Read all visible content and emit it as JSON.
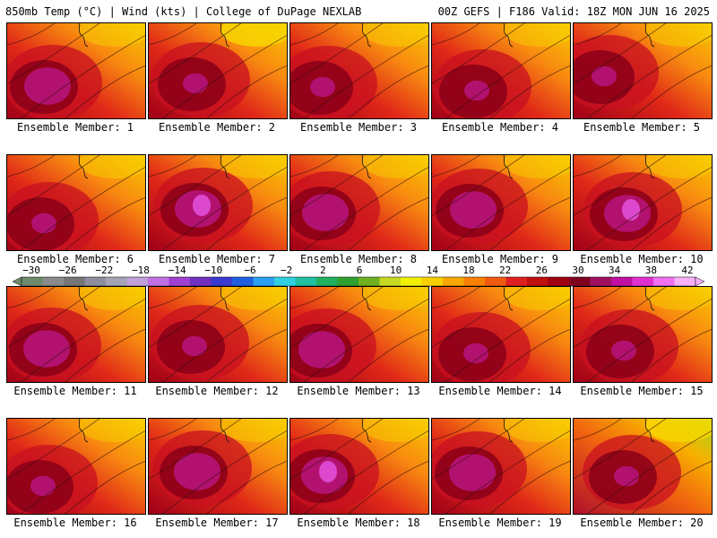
{
  "header": {
    "left": "850mb Temp (°C) | Wind (kts) | College of DuPage NEXLAB",
    "right": "00Z GEFS | F186 Valid: 18Z MON JUN 16 2025"
  },
  "panels": [
    {
      "label": "Ensemble Member: 1"
    },
    {
      "label": "Ensemble Member: 2"
    },
    {
      "label": "Ensemble Member: 3"
    },
    {
      "label": "Ensemble Member: 4"
    },
    {
      "label": "Ensemble Member: 5"
    },
    {
      "label": "Ensemble Member: 6"
    },
    {
      "label": "Ensemble Member: 7"
    },
    {
      "label": "Ensemble Member: 8"
    },
    {
      "label": "Ensemble Member: 9"
    },
    {
      "label": "Ensemble Member: 10"
    },
    {
      "label": "Ensemble Member: 11"
    },
    {
      "label": "Ensemble Member: 12"
    },
    {
      "label": "Ensemble Member: 13"
    },
    {
      "label": "Ensemble Member: 14"
    },
    {
      "label": "Ensemble Member: 15"
    },
    {
      "label": "Ensemble Member: 16"
    },
    {
      "label": "Ensemble Member: 17"
    },
    {
      "label": "Ensemble Member: 18"
    },
    {
      "label": "Ensemble Member: 19"
    },
    {
      "label": "Ensemble Member: 20"
    }
  ],
  "colorbar": {
    "labels": [
      "−30",
      "−26",
      "−22",
      "−18",
      "−14",
      "−10",
      "−6",
      "−2",
      "2",
      "6",
      "10",
      "14",
      "18",
      "22",
      "26",
      "30",
      "34",
      "38",
      "42"
    ],
    "colors": [
      "#6e8a6e",
      "#8a8a8a",
      "#767676",
      "#8e8e9e",
      "#a4a4b4",
      "#c0a0d8",
      "#c070e0",
      "#a040d0",
      "#7030c0",
      "#3a3ad0",
      "#1f5fe0",
      "#2aa0f0",
      "#30d0e0",
      "#20c0a0",
      "#20b060",
      "#30a030",
      "#70b020",
      "#c8d820",
      "#f0f000",
      "#f8d000",
      "#f8a800",
      "#f88000",
      "#f05a10",
      "#e02020",
      "#c01010",
      "#a00010",
      "#800020",
      "#a01060",
      "#c010a0",
      "#e030d0",
      "#f070f0",
      "#f8b0f8"
    ]
  }
}
